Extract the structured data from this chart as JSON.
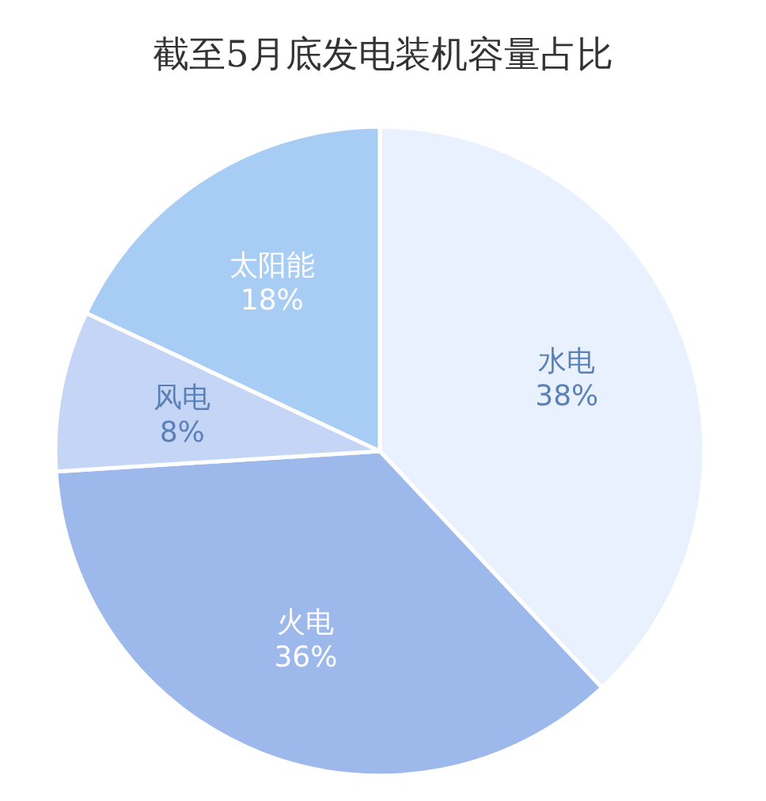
{
  "chart_data": {
    "type": "pie",
    "title": "截至5月底发电装机容量占比",
    "categories": [
      "水电",
      "火电",
      "风电",
      "太阳能"
    ],
    "values": [
      38,
      36,
      8,
      18
    ],
    "value_labels": [
      "38%",
      "36%",
      "8%",
      "18%"
    ],
    "colors": [
      "#e8f1fd",
      "#9db9ec",
      "#c4d5f6",
      "#a8cdf4"
    ]
  }
}
